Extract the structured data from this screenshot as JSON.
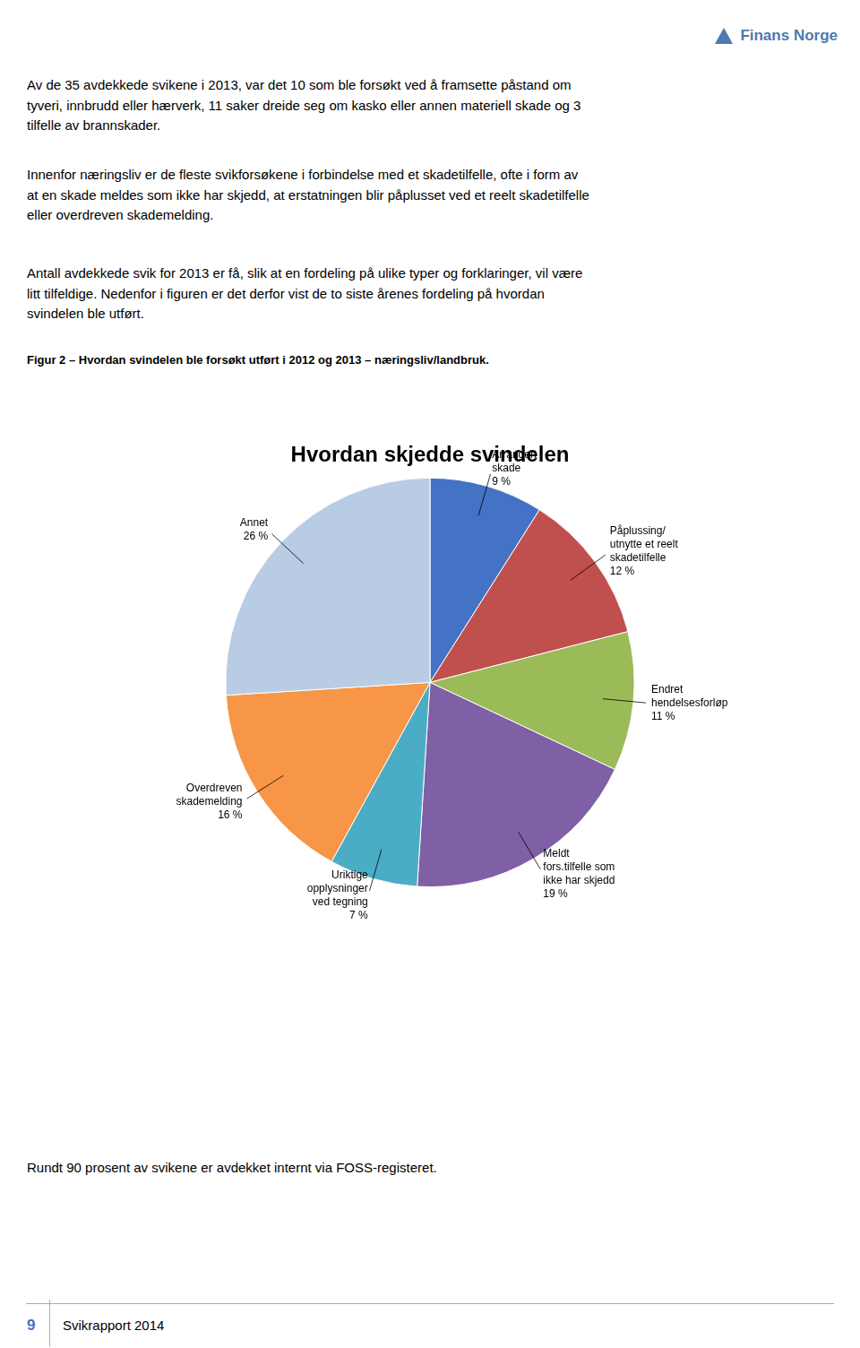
{
  "chart_data": {
    "type": "pie",
    "title": "Hvordan skjedde svindelen",
    "categories": [
      "Arrangert\nskade",
      "Påplussing/\nutnytte et reelt\nskadetilfelle",
      "Endret\nhendelsesforløp",
      "Meldt\nfors.tilfelle som\nikke har skjedd",
      "Uriktige\nopplysninger\nved tegning",
      "Overdreven\nskademelding",
      "Annet"
    ],
    "values": [
      9,
      12,
      11,
      19,
      7,
      16,
      26
    ],
    "value_labels": [
      "9 %",
      "12 %",
      "11 %",
      "19 %",
      "7 %",
      "16 %",
      "26 %"
    ],
    "data_labels": true,
    "colors": [
      "#4472C4",
      "#C0504D",
      "#9BBB59",
      "#7F5FA6",
      "#4BACC6",
      "#F79646",
      "#B8CCE4"
    ]
  },
  "header": "Finans Norge",
  "paragraphs": [
    "Av de 35 avdekkede svikene i 2013, var det 10 som ble forsøkt ved å framsette påstand om\ntyveri, innbrudd eller hærverk, 11 saker dreide seg om kasko eller annen materiell skade og 3\ntilfelle av brannskader.",
    "Innenfor næringsliv er de fleste svikforsøkene i forbindelse med et skadetilfelle, ofte i form av\nat en skade meldes som ikke har skjedd, at erstatningen blir påplusset ved et reelt skadetilfelle\neller overdreven skademelding.",
    "Antall avdekkede svik for 2013 er få, slik at en fordeling på ulike typer og forklaringer, vil være\nlitt tilfeldige. Nedenfor i figuren er det derfor vist de to siste årenes fordeling på hvordan\nsvindelen ble utført."
  ],
  "caption": "Figur 2 – Hvordan svindelen ble forsøkt utført i 2012 og 2013 – næringsliv/landbruk.",
  "footer_text": "Rundt 90 prosent av svikene er avdekket internt via FOSS-registeret.",
  "page_number": "9",
  "footer_label": "Svikrapport 2014"
}
